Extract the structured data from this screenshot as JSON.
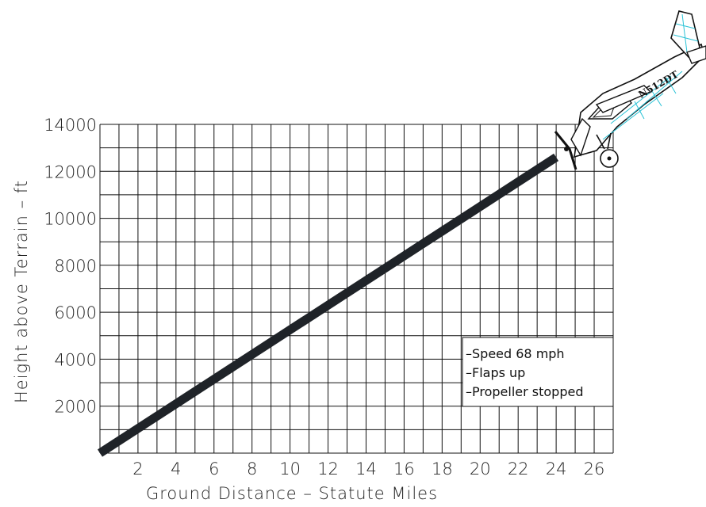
{
  "chart_data": {
    "type": "line",
    "xlabel": "Ground Distance  –  Statute Miles",
    "ylabel": "Height  above  Terrain  –  ft",
    "x_ticks": [
      2,
      4,
      6,
      8,
      10,
      12,
      14,
      16,
      18,
      20,
      22,
      24,
      26
    ],
    "y_ticks": [
      2000,
      4000,
      6000,
      8000,
      10000,
      12000,
      14000
    ],
    "xlim": [
      0,
      27
    ],
    "ylim": [
      0,
      14000
    ],
    "grid": true,
    "series": [
      {
        "x": [
          0,
          24
        ],
        "y": [
          0,
          12600
        ]
      }
    ],
    "annotations": [
      "–Speed 68 mph",
      "–Flaps up",
      "–Propeller stopped"
    ],
    "aircraft_registration": "N512DT"
  },
  "colors": {
    "line": "#1f2328",
    "grid": "#111111",
    "airframe_tint": "#29c2d6"
  },
  "icons": {
    "aircraft": "airplane-icon"
  }
}
